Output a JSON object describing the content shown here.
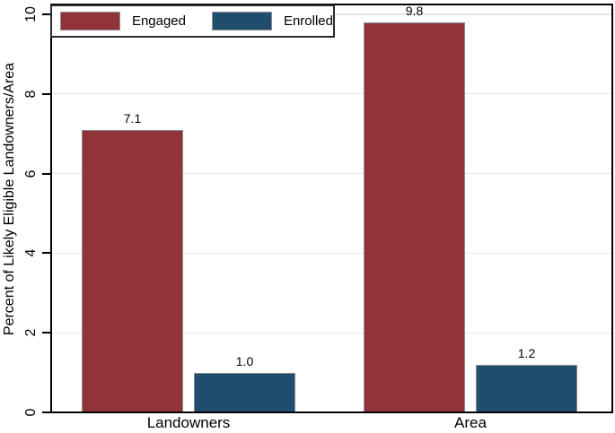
{
  "chart_data": {
    "type": "bar",
    "title": "",
    "categories": [
      "Landowners",
      "Area"
    ],
    "series": [
      {
        "name": "Engaged",
        "color": "#903439",
        "values": [
          7.1,
          9.8
        ],
        "value_labels": [
          "7.1",
          "9.8"
        ]
      },
      {
        "name": "Enrolled",
        "color": "#1f4d6e",
        "values": [
          1.0,
          1.2
        ],
        "value_labels": [
          "1.0",
          "1.2"
        ]
      }
    ],
    "xlabel": "",
    "ylabel": "Percent of Likely Eligible Landowners/Area",
    "yticks": [
      0,
      2,
      4,
      6,
      8,
      10
    ],
    "ylim": [
      0,
      10.3
    ],
    "grid": "horizontal",
    "gridline_color": "#e6e6e6",
    "bar_outline_color": "#8a8a8a",
    "axis_color": "#000000",
    "background_color": "#ffffff",
    "legend_position": "top-left"
  }
}
